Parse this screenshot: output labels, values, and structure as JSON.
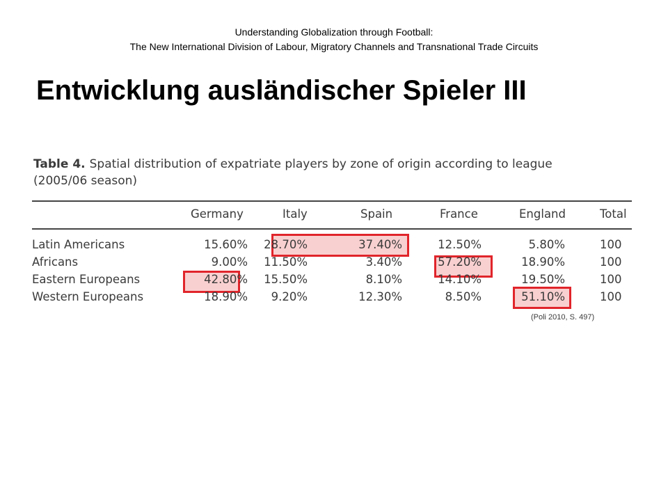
{
  "header": {
    "line1": "Understanding Globalization through Football:",
    "line2": "The New International Division of Labour, Migratory Channels and Transnational Trade Circuits"
  },
  "title": "Entwicklung ausländischer Spieler III",
  "table": {
    "label": "Table 4.",
    "caption_line1": "Spatial distribution of expatriate players by zone of origin according to league",
    "caption_line2": "(2005/06 season)",
    "columns": [
      "Germany",
      "Italy",
      "Spain",
      "France",
      "England",
      "Total"
    ],
    "rows": [
      {
        "name": "Latin Americans",
        "values": [
          "15.60%",
          "28.70%",
          "37.40%",
          "12.50%",
          "5.80%",
          "100"
        ]
      },
      {
        "name": "Africans",
        "values": [
          "9.00%",
          "11.50%",
          "3.40%",
          "57.20%",
          "18.90%",
          "100"
        ]
      },
      {
        "name": "Eastern Europeans",
        "values": [
          "42.80%",
          "15.50%",
          "8.10%",
          "14.10%",
          "19.50%",
          "100"
        ]
      },
      {
        "name": "Western Europeans",
        "values": [
          "18.90%",
          "9.20%",
          "12.30%",
          "8.50%",
          "51.10%",
          "100"
        ]
      }
    ],
    "highlight_color": "#e0252b"
  },
  "source": "(Poli 2010, S. 497)"
}
